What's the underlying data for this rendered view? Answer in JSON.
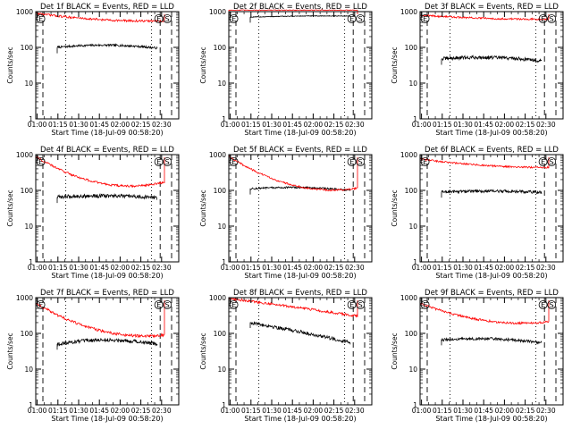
{
  "figure": {
    "background": "#ffffff",
    "axis_color": "#000000",
    "events_color": "#000000",
    "lld_color": "#ff0000"
  },
  "chart_data": [
    {
      "type": "line",
      "title": "Det 1f BLACK = Events, RED = LLD",
      "xlabel": "Start Time (18-Jul-09 00:58:20)",
      "ylabel": "Counts/sec",
      "xlim": [
        0,
        100
      ],
      "ylim": [
        1,
        1000
      ],
      "yscale": "log",
      "xtick_labels": [
        "01:00",
        "01:15",
        "01:30",
        "01:45",
        "02:00",
        "02:15",
        "02:30"
      ],
      "ytick_labels": [
        "1",
        "10",
        "100",
        "1000"
      ],
      "markers": [
        {
          "label": "E",
          "position": "left"
        },
        {
          "label": "E",
          "position": "right"
        },
        {
          "label": "S",
          "position": "right"
        }
      ],
      "series": [
        {
          "name": "Events",
          "color": "#000000",
          "x_range": [
            15.0,
            85.0
          ],
          "start": 100,
          "mid": 115,
          "end": 95,
          "noise": 0.03
        },
        {
          "name": "LLD",
          "color": "#ff0000",
          "x_range": [
            0.0,
            90.0
          ],
          "start": 900,
          "mid": 600,
          "end": 550,
          "noise": 0.03
        }
      ]
    },
    {
      "type": "line",
      "title": "Det 2f BLACK = Events, RED = LLD",
      "xlabel": "Start Time (18-Jul-09 00:58:20)",
      "ylabel": "Counts/sec",
      "xlim": [
        0,
        100
      ],
      "ylim": [
        1,
        1000
      ],
      "yscale": "log",
      "xtick_labels": [
        "01:00",
        "01:15",
        "01:30",
        "01:45",
        "02:00",
        "02:15",
        "02:30"
      ],
      "ytick_labels": [
        "1",
        "10",
        "100",
        "1000"
      ],
      "markers": [
        {
          "label": "E",
          "position": "left"
        },
        {
          "label": "E",
          "position": "right"
        },
        {
          "label": "S",
          "position": "right"
        }
      ],
      "series": [
        {
          "name": "Events",
          "color": "#000000",
          "x_range": [
            15.0,
            85.0
          ],
          "start": 700,
          "mid": 750,
          "end": 750,
          "noise": 0.01
        },
        {
          "name": "LLD",
          "color": "#ff0000",
          "x_range": [
            0.0,
            90.0
          ],
          "start": 1100,
          "mid": 1100,
          "end": 1100,
          "noise": 0.01
        }
      ]
    },
    {
      "type": "line",
      "title": "Det 3f BLACK = Events, RED = LLD",
      "xlabel": "Start Time (18-Jul-09 00:58:20)",
      "ylabel": "Counts/sec",
      "xlim": [
        0,
        100
      ],
      "ylim": [
        1,
        1000
      ],
      "yscale": "log",
      "xtick_labels": [
        "01:00",
        "01:15",
        "01:30",
        "01:45",
        "02:00",
        "02:15",
        "02:30"
      ],
      "ytick_labels": [
        "1",
        "10",
        "100",
        "1000"
      ],
      "markers": [
        {
          "label": "E",
          "position": "left"
        },
        {
          "label": "E",
          "position": "right"
        },
        {
          "label": "S",
          "position": "right"
        }
      ],
      "series": [
        {
          "name": "Events",
          "color": "#000000",
          "x_range": [
            15.0,
            85.0
          ],
          "start": 48,
          "mid": 52,
          "end": 42,
          "noise": 0.05
        },
        {
          "name": "LLD",
          "color": "#ff0000",
          "x_range": [
            0.0,
            90.0
          ],
          "start": 800,
          "mid": 650,
          "end": 620,
          "noise": 0.025
        }
      ]
    },
    {
      "type": "line",
      "title": "Det 4f BLACK = Events, RED = LLD",
      "xlabel": "Start Time (18-Jul-09 00:58:20)",
      "ylabel": "Counts/sec",
      "xlim": [
        0,
        100
      ],
      "ylim": [
        1,
        1000
      ],
      "yscale": "log",
      "xtick_labels": [
        "01:00",
        "01:15",
        "01:30",
        "01:45",
        "02:00",
        "02:15",
        "02:30"
      ],
      "ytick_labels": [
        "1",
        "10",
        "100",
        "1000"
      ],
      "markers": [
        {
          "label": "E",
          "position": "left"
        },
        {
          "label": "E",
          "position": "right"
        },
        {
          "label": "S",
          "position": "right"
        }
      ],
      "series": [
        {
          "name": "Events",
          "color": "#000000",
          "x_range": [
            15.0,
            85.0
          ],
          "start": 65,
          "mid": 70,
          "end": 62,
          "noise": 0.05
        },
        {
          "name": "LLD",
          "color": "#ff0000",
          "x_range": [
            0.0,
            90.0
          ],
          "start": 900,
          "mid": 160,
          "end": 170,
          "noise": 0.03
        }
      ]
    },
    {
      "type": "line",
      "title": "Det 5f BLACK = Events, RED = LLD",
      "xlabel": "Start Time (18-Jul-09 00:58:20)",
      "ylabel": "Counts/sec",
      "xlim": [
        0,
        100
      ],
      "ylim": [
        1,
        1000
      ],
      "yscale": "log",
      "xtick_labels": [
        "01:00",
        "01:15",
        "01:30",
        "01:45",
        "02:00",
        "02:15",
        "02:30"
      ],
      "ytick_labels": [
        "1",
        "10",
        "100",
        "1000"
      ],
      "markers": [
        {
          "label": "E",
          "position": "left"
        },
        {
          "label": "E",
          "position": "right"
        },
        {
          "label": "S",
          "position": "right"
        }
      ],
      "series": [
        {
          "name": "Events",
          "color": "#000000",
          "x_range": [
            15.0,
            85.0
          ],
          "start": 110,
          "mid": 120,
          "end": 100,
          "noise": 0.025
        },
        {
          "name": "LLD",
          "color": "#ff0000",
          "x_range": [
            0.0,
            90.0
          ],
          "start": 900,
          "mid": 140,
          "end": 115,
          "noise": 0.025
        }
      ]
    },
    {
      "type": "line",
      "title": "Det 6f BLACK = Events, RED = LLD",
      "xlabel": "Start Time (18-Jul-09 00:58:20)",
      "ylabel": "Counts/sec",
      "xlim": [
        0,
        100
      ],
      "ylim": [
        1,
        1000
      ],
      "yscale": "log",
      "xtick_labels": [
        "01:00",
        "01:15",
        "01:30",
        "01:45",
        "02:00",
        "02:15",
        "02:30"
      ],
      "ytick_labels": [
        "1",
        "10",
        "100",
        "1000"
      ],
      "markers": [
        {
          "label": "E",
          "position": "left"
        },
        {
          "label": "E",
          "position": "right"
        },
        {
          "label": "S",
          "position": "right"
        }
      ],
      "series": [
        {
          "name": "Events",
          "color": "#000000",
          "x_range": [
            15.0,
            85.0
          ],
          "start": 90,
          "mid": 95,
          "end": 88,
          "noise": 0.04
        },
        {
          "name": "LLD",
          "color": "#ff0000",
          "x_range": [
            0.0,
            90.0
          ],
          "start": 750,
          "mid": 500,
          "end": 440,
          "noise": 0.025
        }
      ]
    },
    {
      "type": "line",
      "title": "Det 7f BLACK = Events, RED = LLD",
      "xlabel": "Start Time (18-Jul-09 00:58:20)",
      "ylabel": "Counts/sec",
      "xlim": [
        0,
        100
      ],
      "ylim": [
        1,
        1000
      ],
      "yscale": "log",
      "xtick_labels": [
        "01:00",
        "01:15",
        "01:30",
        "01:45",
        "02:00",
        "02:15",
        "02:30"
      ],
      "ytick_labels": [
        "1",
        "10",
        "100",
        "1000"
      ],
      "markers": [
        {
          "label": "E",
          "position": "left"
        },
        {
          "label": "E",
          "position": "right"
        },
        {
          "label": "S",
          "position": "right"
        }
      ],
      "series": [
        {
          "name": "Events",
          "color": "#000000",
          "x_range": [
            15.0,
            85.0
          ],
          "start": 50,
          "mid": 65,
          "end": 50,
          "noise": 0.05
        },
        {
          "name": "LLD",
          "color": "#ff0000",
          "x_range": [
            0.0,
            90.0
          ],
          "start": 700,
          "mid": 120,
          "end": 90,
          "noise": 0.04
        }
      ]
    },
    {
      "type": "line",
      "title": "Det 8f BLACK = Events, RED = LLD",
      "xlabel": "Start Time (18-Jul-09 00:58:20)",
      "ylabel": "Counts/sec",
      "xlim": [
        0,
        100
      ],
      "ylim": [
        1,
        1000
      ],
      "yscale": "log",
      "xtick_labels": [
        "01:00",
        "01:15",
        "01:30",
        "01:45",
        "02:00",
        "02:15",
        "02:30"
      ],
      "ytick_labels": [
        "1",
        "10",
        "100",
        "1000"
      ],
      "markers": [
        {
          "label": "E",
          "position": "left"
        },
        {
          "label": "E",
          "position": "right"
        },
        {
          "label": "S",
          "position": "right"
        }
      ],
      "series": [
        {
          "name": "Events",
          "color": "#000000",
          "x_range": [
            15.0,
            85.0
          ],
          "start": 200,
          "mid": 110,
          "end": 55,
          "noise": 0.05
        },
        {
          "name": "LLD",
          "color": "#ff0000",
          "x_range": [
            0.0,
            90.0
          ],
          "start": 950,
          "mid": 550,
          "end": 300,
          "noise": 0.035
        }
      ]
    },
    {
      "type": "line",
      "title": "Det 9f BLACK = Events, RED = LLD",
      "xlabel": "Start Time (18-Jul-09 00:58:20)",
      "ylabel": "Counts/sec",
      "xlim": [
        0,
        100
      ],
      "ylim": [
        1,
        1000
      ],
      "yscale": "log",
      "xtick_labels": [
        "01:00",
        "01:15",
        "01:30",
        "01:45",
        "02:00",
        "02:15",
        "02:30"
      ],
      "ytick_labels": [
        "1",
        "10",
        "100",
        "1000"
      ],
      "markers": [
        {
          "label": "E",
          "position": "left"
        },
        {
          "label": "E",
          "position": "right"
        },
        {
          "label": "S",
          "position": "right"
        }
      ],
      "series": [
        {
          "name": "Events",
          "color": "#000000",
          "x_range": [
            15.0,
            85.0
          ],
          "start": 65,
          "mid": 70,
          "end": 55,
          "noise": 0.04
        },
        {
          "name": "LLD",
          "color": "#ff0000",
          "x_range": [
            0.0,
            90.0
          ],
          "start": 700,
          "mid": 230,
          "end": 210,
          "noise": 0.03
        }
      ]
    }
  ]
}
